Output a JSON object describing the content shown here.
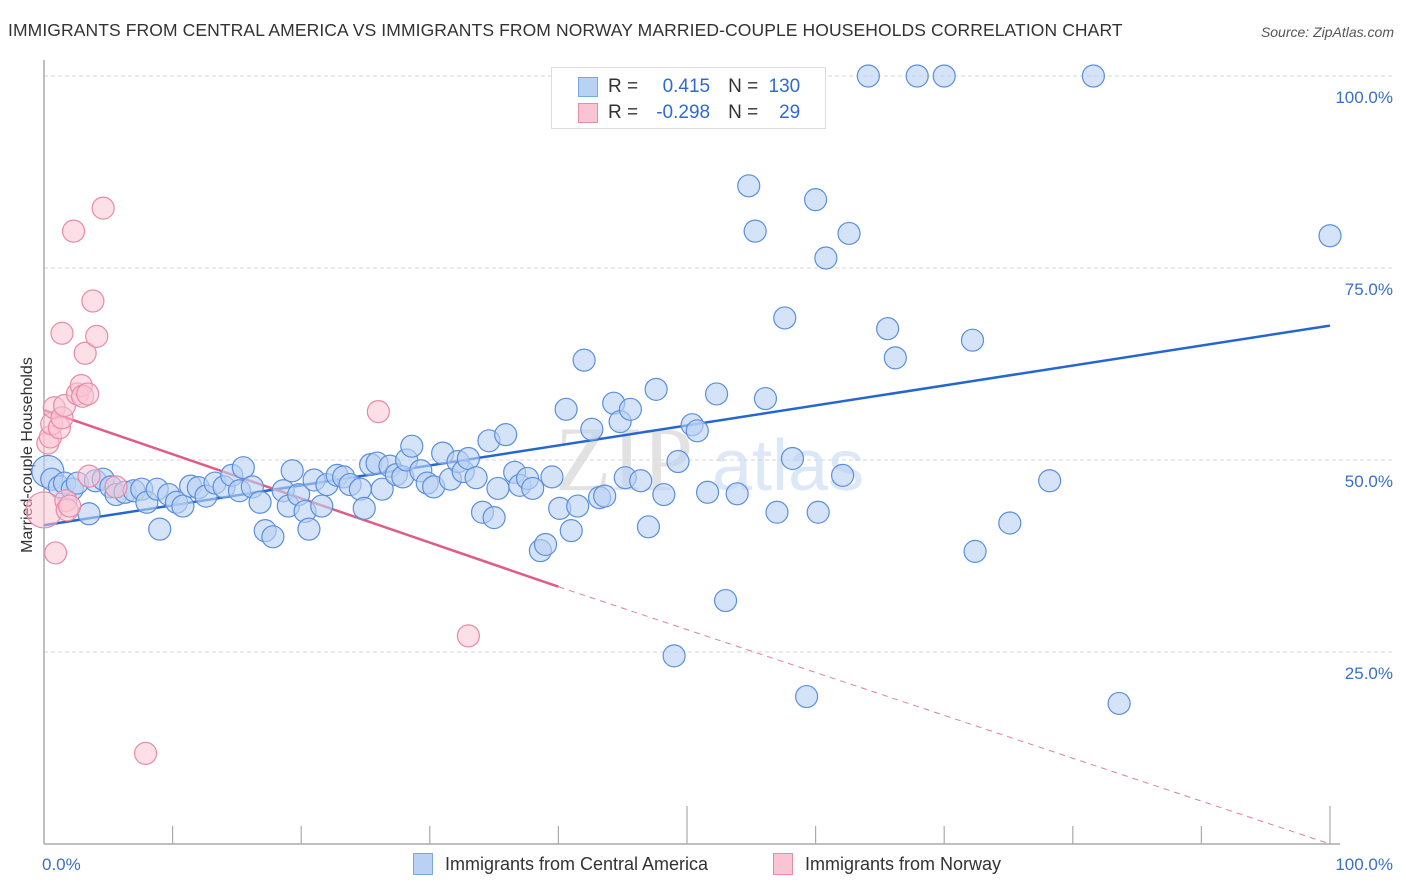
{
  "header": {
    "title": "IMMIGRANTS FROM CENTRAL AMERICA VS IMMIGRANTS FROM NORWAY MARRIED-COUPLE HOUSEHOLDS CORRELATION CHART",
    "source": "Source: ZipAtlas.com"
  },
  "colors": {
    "central_america_fill": "#b9d2f3",
    "central_america_stroke": "#5b8fdc",
    "central_america_line": "#2566d0",
    "norway_fill": "#f9c4d3",
    "norway_stroke": "#e98aa7",
    "norway_line": "#e05c88",
    "tick_text": "#3a6fc9"
  },
  "stats_legend": [
    {
      "series": "Immigrants from Central America",
      "r_label": "R =",
      "r_value": "0.415",
      "n_label": "N =",
      "n_value": "130"
    },
    {
      "series": "Immigrants from Norway",
      "r_label": "R =",
      "r_value": "-0.298",
      "n_label": "N =",
      "n_value": "29"
    }
  ],
  "watermark": {
    "zip": "ZIP",
    "atlas": "atlas"
  },
  "chart_data": {
    "type": "scatter",
    "title": "IMMIGRANTS FROM CENTRAL AMERICA VS IMMIGRANTS FROM NORWAY MARRIED-COUPLE HOUSEHOLDS CORRELATION CHART",
    "xlabel": "",
    "ylabel": "Married-couple Households",
    "xlim": [
      0,
      100
    ],
    "ylim": [
      0,
      100
    ],
    "x_tick_labels": [
      "0.0%",
      "100.0%"
    ],
    "x_ticks_minor": [
      0,
      10,
      20,
      30,
      40,
      50,
      60,
      70,
      80,
      90,
      100
    ],
    "y_ticks": [
      25,
      50,
      75,
      100
    ],
    "y_tick_labels": [
      "25.0%",
      "50.0%",
      "75.0%",
      "100.0%"
    ],
    "grid": true,
    "legend_position": "bottom-center",
    "series": [
      {
        "name": "Immigrants from Central America",
        "color": "#5b8fdc",
        "trend": {
          "x0": 0,
          "y0": 41.5,
          "x1": 100,
          "y1": 67.5,
          "dashed_extension": false
        },
        "points": [
          [
            0.3,
            48.5
          ],
          [
            0.6,
            47.5
          ],
          [
            1.2,
            46.5
          ],
          [
            1.6,
            47.0
          ],
          [
            2.2,
            46.2
          ],
          [
            2.6,
            47.0
          ],
          [
            3.5,
            43.0
          ],
          [
            4.0,
            47.3
          ],
          [
            4.6,
            47.5
          ],
          [
            5.2,
            46.5
          ],
          [
            5.6,
            45.5
          ],
          [
            6.3,
            45.8
          ],
          [
            7.0,
            46.0
          ],
          [
            7.6,
            46.2
          ],
          [
            8.0,
            44.5
          ],
          [
            8.8,
            46.2
          ],
          [
            9.0,
            41.0
          ],
          [
            9.7,
            45.5
          ],
          [
            10.3,
            44.5
          ],
          [
            10.8,
            44.0
          ],
          [
            11.4,
            46.6
          ],
          [
            12.0,
            46.4
          ],
          [
            12.6,
            45.3
          ],
          [
            13.3,
            47.0
          ],
          [
            14.0,
            46.5
          ],
          [
            14.6,
            48.0
          ],
          [
            15.2,
            46.0
          ],
          [
            15.5,
            49.0
          ],
          [
            16.2,
            46.5
          ],
          [
            16.8,
            44.5
          ],
          [
            17.2,
            40.8
          ],
          [
            17.8,
            40.0
          ],
          [
            18.6,
            46.0
          ],
          [
            19.0,
            44.0
          ],
          [
            19.3,
            48.6
          ],
          [
            19.8,
            45.5
          ],
          [
            20.3,
            43.3
          ],
          [
            20.6,
            41.0
          ],
          [
            21.0,
            47.4
          ],
          [
            21.6,
            44.0
          ],
          [
            22.0,
            46.8
          ],
          [
            22.8,
            48.0
          ],
          [
            23.3,
            47.8
          ],
          [
            23.8,
            46.8
          ],
          [
            24.6,
            46.2
          ],
          [
            24.9,
            43.7
          ],
          [
            25.4,
            49.4
          ],
          [
            25.9,
            49.6
          ],
          [
            26.3,
            46.2
          ],
          [
            26.9,
            49.2
          ],
          [
            27.4,
            48.1
          ],
          [
            27.9,
            47.8
          ],
          [
            28.2,
            50.0
          ],
          [
            28.6,
            51.8
          ],
          [
            29.3,
            48.6
          ],
          [
            29.8,
            47.0
          ],
          [
            30.3,
            46.5
          ],
          [
            31.0,
            50.9
          ],
          [
            31.6,
            47.5
          ],
          [
            32.2,
            49.8
          ],
          [
            32.6,
            48.5
          ],
          [
            33.0,
            50.2
          ],
          [
            33.6,
            47.7
          ],
          [
            34.1,
            43.2
          ],
          [
            34.6,
            52.5
          ],
          [
            35.0,
            42.5
          ],
          [
            35.3,
            46.3
          ],
          [
            35.9,
            53.3
          ],
          [
            36.6,
            48.4
          ],
          [
            37.0,
            46.7
          ],
          [
            37.6,
            47.6
          ],
          [
            38.0,
            46.3
          ],
          [
            38.6,
            38.2
          ],
          [
            39.0,
            39.0
          ],
          [
            39.5,
            47.8
          ],
          [
            40.1,
            43.7
          ],
          [
            40.6,
            56.6
          ],
          [
            41.0,
            40.8
          ],
          [
            41.5,
            44.0
          ],
          [
            42.0,
            63.0
          ],
          [
            42.6,
            54.0
          ],
          [
            43.2,
            45.1
          ],
          [
            43.6,
            45.3
          ],
          [
            44.3,
            57.4
          ],
          [
            44.8,
            55.0
          ],
          [
            45.2,
            47.7
          ],
          [
            45.6,
            56.6
          ],
          [
            46.4,
            47.3
          ],
          [
            47.0,
            41.3
          ],
          [
            47.6,
            59.2
          ],
          [
            48.2,
            45.5
          ],
          [
            49.0,
            24.5
          ],
          [
            49.3,
            49.8
          ],
          [
            50.4,
            54.6
          ],
          [
            50.8,
            53.8
          ],
          [
            51.6,
            45.8
          ],
          [
            52.3,
            58.6
          ],
          [
            53.0,
            31.7
          ],
          [
            53.9,
            45.6
          ],
          [
            54.8,
            85.7
          ],
          [
            55.3,
            79.8
          ],
          [
            56.1,
            58.0
          ],
          [
            57.0,
            43.2
          ],
          [
            57.6,
            68.5
          ],
          [
            58.2,
            50.2
          ],
          [
            59.3,
            19.2
          ],
          [
            60.0,
            83.9
          ],
          [
            60.2,
            43.2
          ],
          [
            60.8,
            76.3
          ],
          [
            62.1,
            48.0
          ],
          [
            62.6,
            79.5
          ],
          [
            64.1,
            100.0
          ],
          [
            65.6,
            67.1
          ],
          [
            66.2,
            63.3
          ],
          [
            67.9,
            100.0
          ],
          [
            70.0,
            100.0
          ],
          [
            72.2,
            65.6
          ],
          [
            72.4,
            38.1
          ],
          [
            75.1,
            41.8
          ],
          [
            78.2,
            47.3
          ],
          [
            81.6,
            100.0
          ],
          [
            83.6,
            18.3
          ],
          [
            100.0,
            79.2
          ]
        ]
      },
      {
        "name": "Immigrants from Norway",
        "color": "#e98aa7",
        "trend": {
          "x0": 0,
          "y0": 56.5,
          "x1": 40.0,
          "y1": 33.5,
          "dashed_to": {
            "x": 100,
            "y": 0
          }
        },
        "points": [
          [
            0.0,
            43.5
          ],
          [
            0.3,
            52.2
          ],
          [
            0.5,
            53.0
          ],
          [
            0.6,
            54.7
          ],
          [
            0.8,
            56.8
          ],
          [
            0.9,
            37.9
          ],
          [
            1.2,
            54.2
          ],
          [
            1.4,
            55.5
          ],
          [
            1.4,
            66.5
          ],
          [
            1.6,
            57.1
          ],
          [
            1.7,
            44.7
          ],
          [
            1.8,
            43.5
          ],
          [
            2.0,
            44.0
          ],
          [
            2.3,
            79.8
          ],
          [
            2.6,
            58.6
          ],
          [
            2.9,
            59.7
          ],
          [
            3.0,
            58.3
          ],
          [
            3.2,
            63.9
          ],
          [
            3.4,
            58.6
          ],
          [
            3.5,
            47.9
          ],
          [
            3.8,
            70.7
          ],
          [
            4.1,
            66.1
          ],
          [
            4.6,
            82.8
          ],
          [
            5.6,
            46.5
          ],
          [
            7.9,
            11.8
          ],
          [
            26.0,
            56.3
          ],
          [
            33.0,
            27.1
          ]
        ]
      }
    ]
  },
  "bottom_legend": [
    {
      "label": "Immigrants from Central America"
    },
    {
      "label": "Immigrants from Norway"
    }
  ]
}
